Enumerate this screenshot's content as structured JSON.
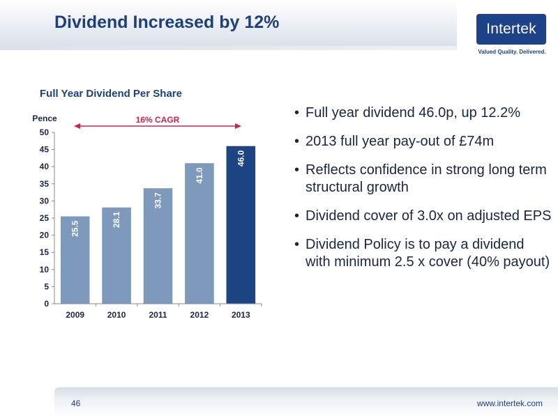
{
  "slide": {
    "title": "Dividend Increased by 12%",
    "page_number": "46",
    "footer_url": "www.intertek.com"
  },
  "logo": {
    "name": "Intertek",
    "tagline": "Valued Quality. Delivered."
  },
  "bullets": [
    "Full year dividend 46.0p, up 12.2%",
    "2013 full year pay-out of £74m",
    "Reflects confidence in strong long term structural growth",
    "Dividend cover of 3.0x on adjusted EPS",
    "Dividend Policy is to pay a dividend with minimum 2.5 x cover (40% payout)"
  ],
  "chart_data": {
    "type": "bar",
    "title": "Full Year Dividend Per Share",
    "ylabel": "Pence",
    "categories": [
      "2009",
      "2010",
      "2011",
      "2012",
      "2013"
    ],
    "values": [
      25.5,
      28.1,
      33.7,
      41.0,
      46.0
    ],
    "value_labels": [
      "25.5",
      "28.1",
      "33.7",
      "41.0",
      "46.0"
    ],
    "ylim": [
      0,
      50
    ],
    "yticks": [
      0,
      5,
      10,
      15,
      20,
      25,
      30,
      35,
      40,
      45,
      50
    ],
    "grid": false,
    "annotation": "16% CAGR",
    "colors": {
      "bar": "#7d99bc",
      "highlight_bar": "#1e4583",
      "annotation": "#cc2255",
      "label_on_bar": "#ffffff"
    },
    "highlight_index": 4
  }
}
